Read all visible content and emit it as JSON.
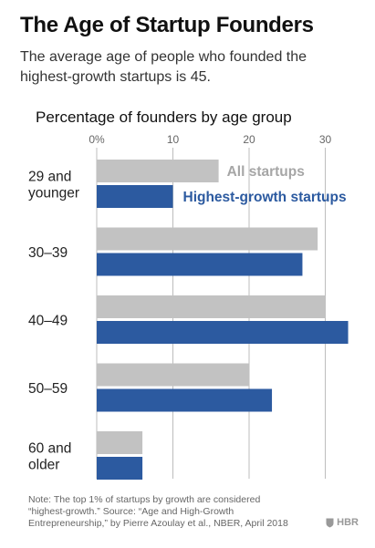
{
  "header": {
    "title": "The Age of Startup Founders",
    "subtitle": "The average age of people who founded the highest-growth startups is 45."
  },
  "chart_data": {
    "type": "bar",
    "orientation": "horizontal",
    "title": "Percentage of founders by age group",
    "xlabel": "",
    "ylabel": "",
    "xlim": [
      0,
      33
    ],
    "xticks": [
      0,
      10,
      20,
      30
    ],
    "tick_labels": [
      "0%",
      "10",
      "20",
      "30"
    ],
    "grid": true,
    "legend_placement": "inline, next to first group bars",
    "categories": [
      "29 and younger",
      "30–39",
      "40–49",
      "50–59",
      "60 and older"
    ],
    "category_lines": [
      [
        "29 and",
        "younger"
      ],
      [
        "30–39"
      ],
      [
        "40–49"
      ],
      [
        "50–59"
      ],
      [
        "60 and",
        "older"
      ]
    ],
    "series": [
      {
        "name": "All startups",
        "color": "#c2c2c2",
        "label_color": "#a6a6a6",
        "values": [
          16,
          29,
          30,
          20,
          6
        ]
      },
      {
        "name": "Highest-growth startups",
        "color": "#2c5aa0",
        "label_color": "#2c5aa0",
        "values": [
          10,
          27,
          33,
          23,
          6
        ]
      }
    ]
  },
  "footer": {
    "note_lines": [
      "Note: The top 1% of startups by growth are considered",
      "“highest-growth.” Source: “Age and High-Growth",
      "Entrepreneurship,” by Pierre Azoulay et al., NBER, April 2018"
    ],
    "logo_text": "HBR",
    "logo_icon": "shield-icon"
  }
}
